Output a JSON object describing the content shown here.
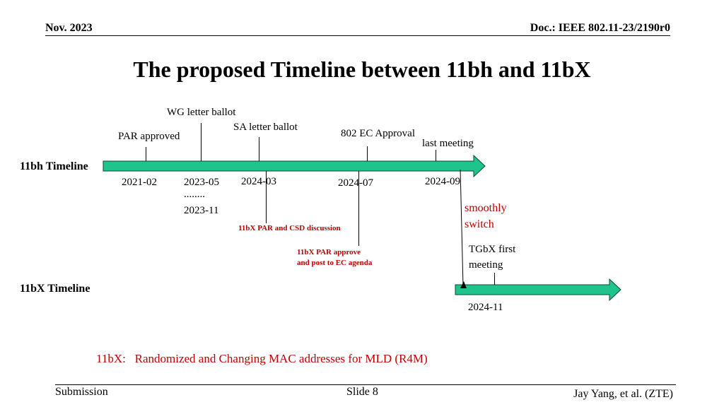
{
  "header": {
    "date": "Nov. 2023",
    "doc": "Doc.: IEEE 802.11-23/2190r0"
  },
  "title": "The proposed Timeline between 11bh and 11bX",
  "timeline_11bh": {
    "label": "11bh Timeline",
    "milestones_above": {
      "wg_letter_ballot": "WG letter ballot",
      "sa_letter_ballot": "SA letter ballot",
      "par_approved": "PAR approved",
      "ec_approval": "802 EC Approval",
      "last_meeting": "last meeting"
    },
    "dates": {
      "d1": "2021-02",
      "d2": "2023-05",
      "d2_dots": "........",
      "d2_end": "2023-11",
      "d3": "2024-03",
      "d4": "2024-07",
      "d5": "2024-09"
    }
  },
  "notes": {
    "smoothly": "smoothly",
    "switch": "switch",
    "par_csd": "11bX PAR and CSD discussion",
    "par_approve_1": "11bX PAR approve",
    "par_approve_2": "and post to EC agenda",
    "tgbx_1": "TGbX first",
    "tgbx_2": "meeting"
  },
  "timeline_11bx": {
    "label": "11bX Timeline",
    "date": "2024-11"
  },
  "subtitle": "11bX:   Randomized and Changing MAC addresses for MLD (R4M)",
  "footer": {
    "left": "Submission",
    "center": "Slide 8",
    "right": "Jay Yang, et al. (ZTE)"
  },
  "colors": {
    "arrow_fill": "#1fc48c",
    "accent_red": "#c00000"
  }
}
